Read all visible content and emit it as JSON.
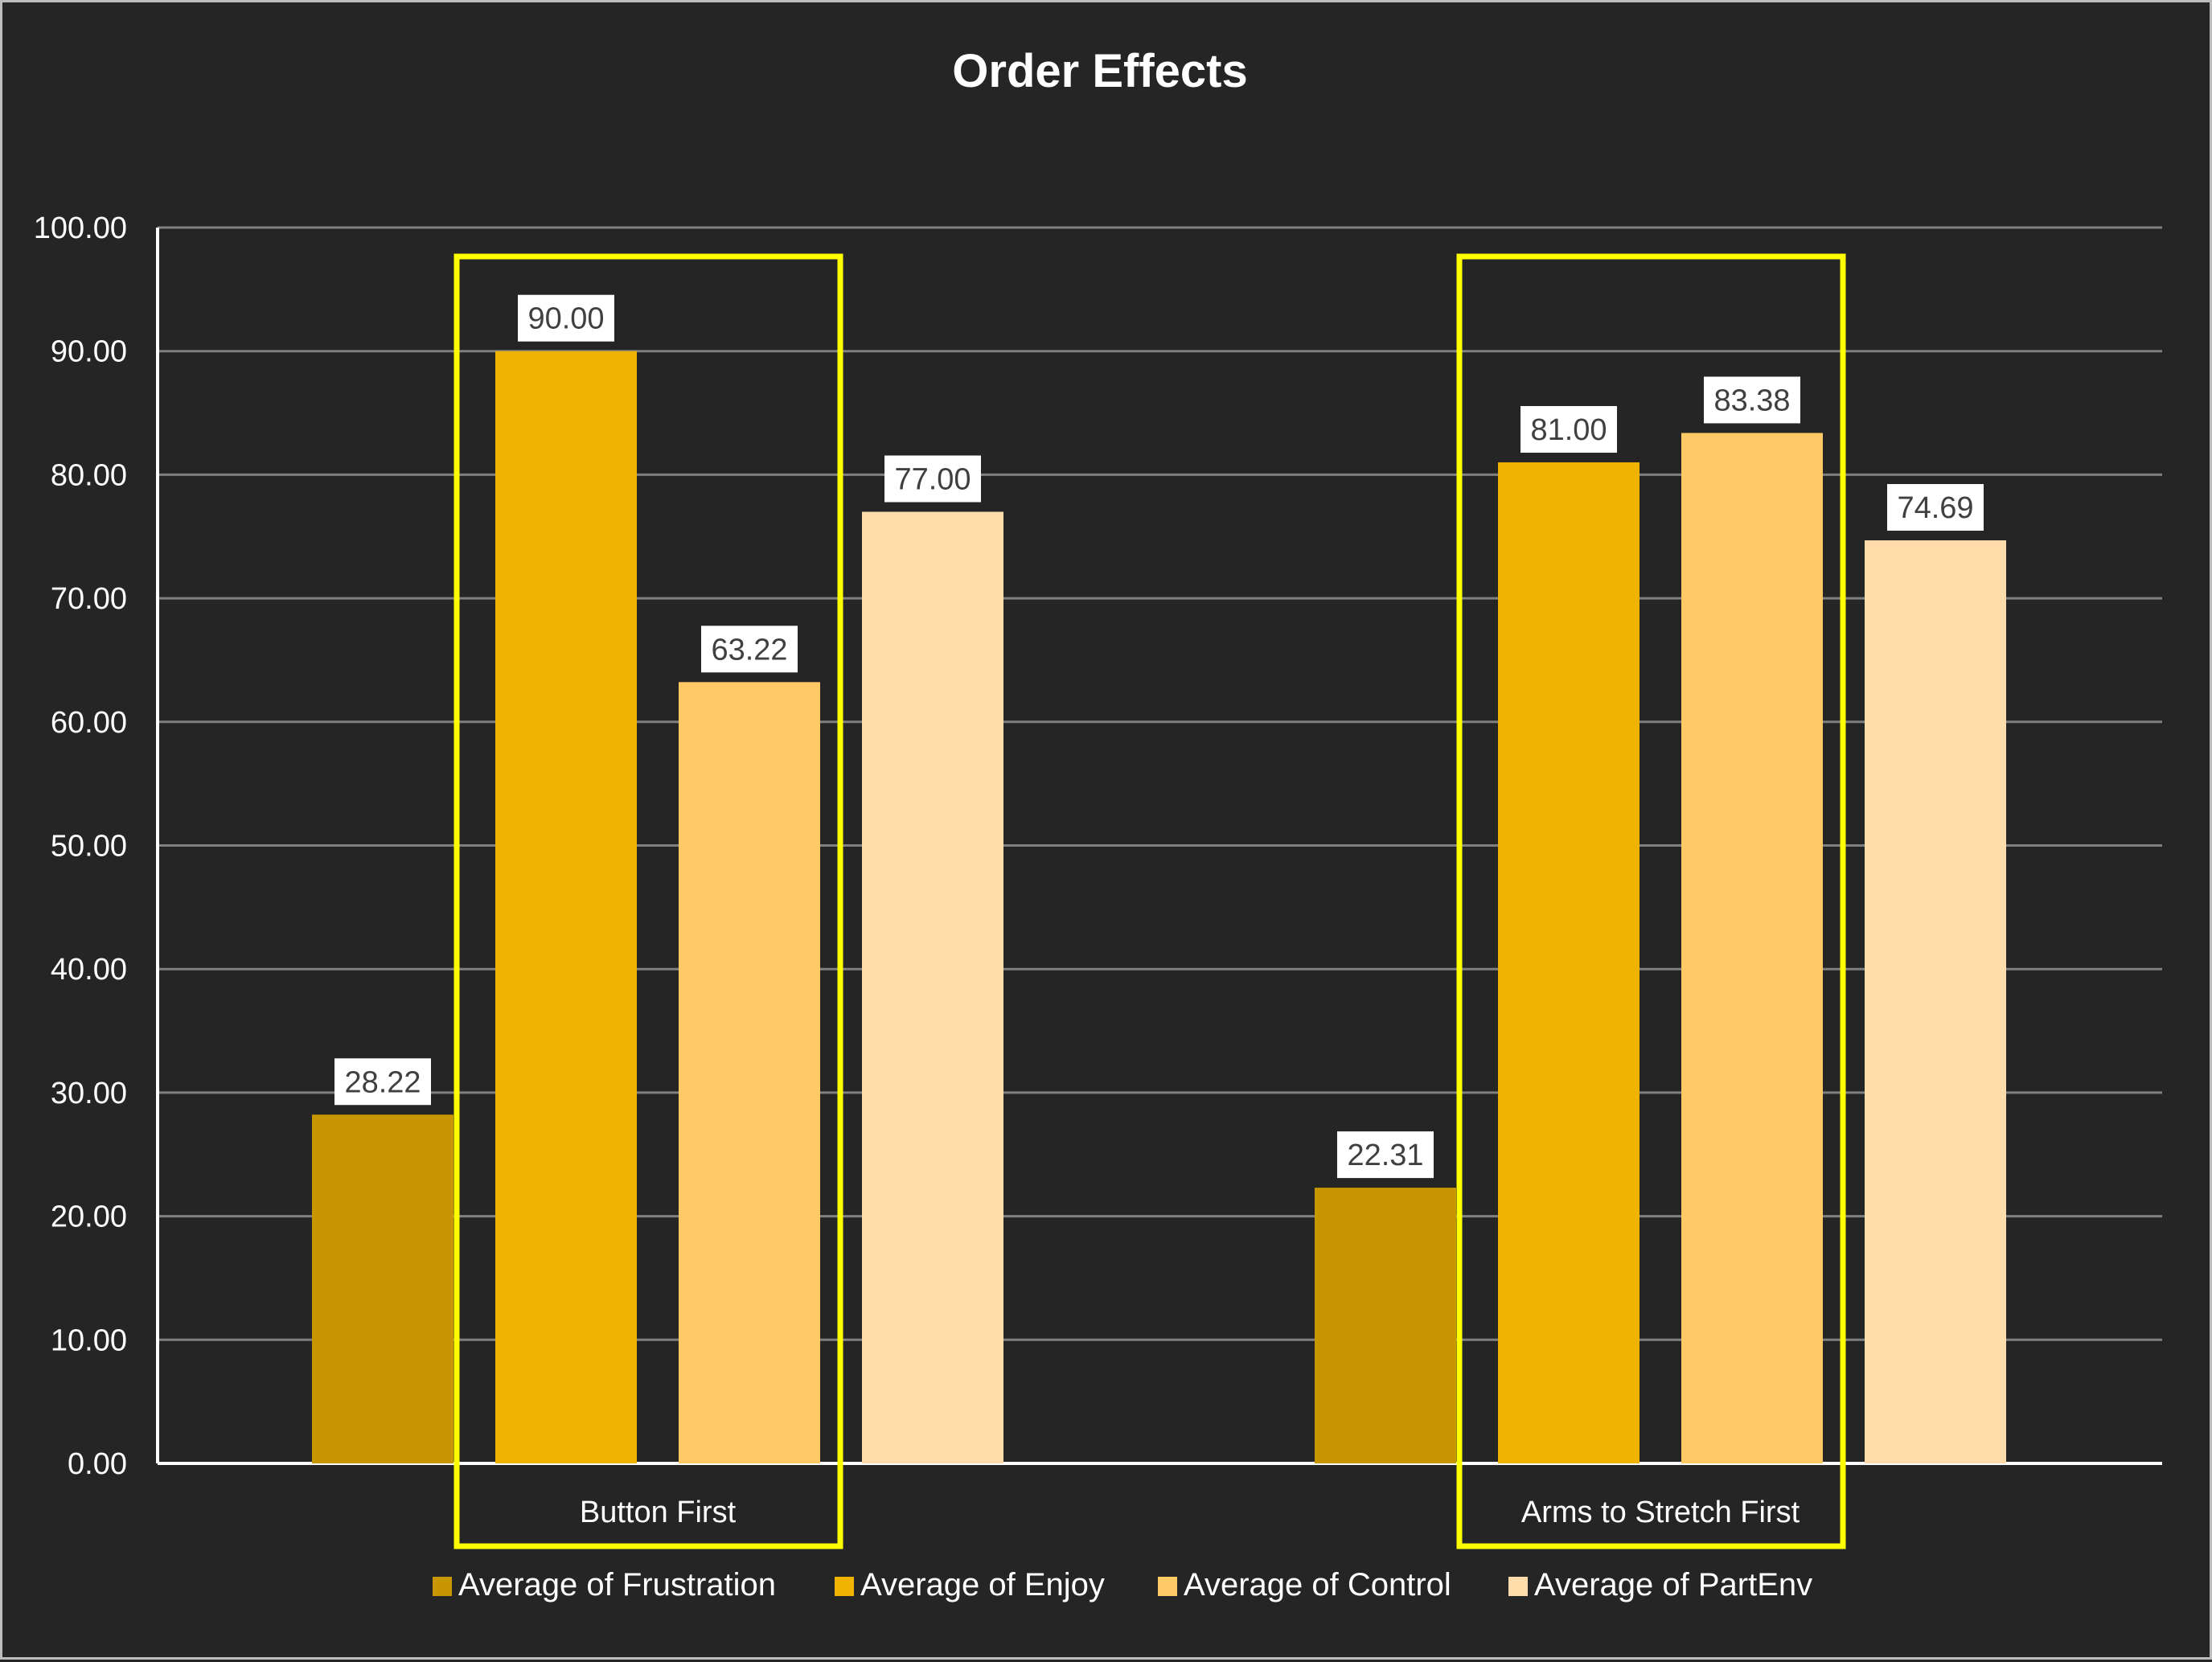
{
  "chart_data": {
    "type": "bar",
    "title": "Order Effects",
    "xlabel": "",
    "ylabel": "",
    "ylim": [
      0,
      100
    ],
    "yticks": [
      "0.00",
      "10.00",
      "20.00",
      "30.00",
      "40.00",
      "50.00",
      "60.00",
      "70.00",
      "80.00",
      "90.00",
      "100.00"
    ],
    "categories": [
      "Button First",
      "Arms to Stretch First"
    ],
    "series": [
      {
        "name": "Average  of Frustration",
        "values": [
          28.22,
          22.31
        ],
        "labels": [
          "28.22",
          "22.31"
        ],
        "color": "#c89600"
      },
      {
        "name": "Average  of Enjoy",
        "values": [
          90.0,
          81.0
        ],
        "labels": [
          "90.00",
          "81.00"
        ],
        "color": "#efb300"
      },
      {
        "name": "Average  of Control",
        "values": [
          63.22,
          83.38
        ],
        "labels": [
          "63.22",
          "83.38"
        ],
        "color": "#ffc966"
      },
      {
        "name": "Average  of PartEnv",
        "values": [
          77.0,
          74.69
        ],
        "labels": [
          "77.00",
          "74.69"
        ],
        "color": "#ffdcaa"
      }
    ],
    "highlight_color": "#ffff00",
    "grid": true,
    "legend_position": "bottom"
  },
  "colors": {
    "background": "#252525",
    "gridline": "#808080",
    "axis": "#ffffff",
    "text": "#ffffff",
    "label_box": "#ffffff"
  }
}
